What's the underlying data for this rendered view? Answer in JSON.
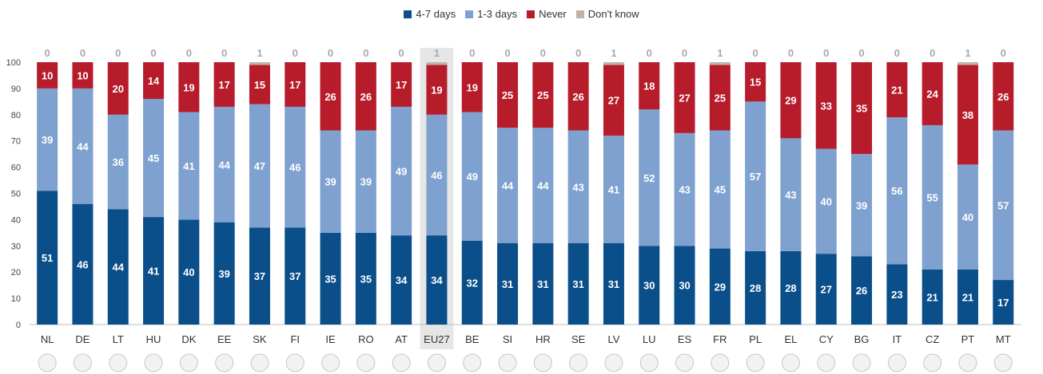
{
  "chart_data": {
    "type": "bar",
    "stacked": true,
    "orientation": "vertical",
    "ylim": [
      0,
      100
    ],
    "yticks": [
      0,
      10,
      20,
      30,
      40,
      50,
      60,
      70,
      80,
      90,
      100
    ],
    "legend_position": "top-center",
    "categories": [
      "NL",
      "DE",
      "LT",
      "HU",
      "DK",
      "EE",
      "SK",
      "FI",
      "IE",
      "RO",
      "AT",
      "EU27",
      "BE",
      "SI",
      "HR",
      "SE",
      "LV",
      "LU",
      "ES",
      "FR",
      "PL",
      "EL",
      "CY",
      "BG",
      "IT",
      "CZ",
      "PT",
      "MT"
    ],
    "highlight_category": "EU27",
    "series": [
      {
        "name": "4-7 days",
        "color": "#0b4f8a",
        "values": [
          51,
          46,
          44,
          41,
          40,
          39,
          37,
          37,
          35,
          35,
          34,
          34,
          32,
          31,
          31,
          31,
          31,
          30,
          30,
          29,
          28,
          28,
          27,
          26,
          23,
          21,
          21,
          17
        ]
      },
      {
        "name": "1-3 days",
        "color": "#7ea1cf",
        "values": [
          39,
          44,
          36,
          45,
          41,
          44,
          47,
          46,
          39,
          39,
          49,
          46,
          49,
          44,
          44,
          43,
          41,
          52,
          43,
          45,
          57,
          43,
          40,
          39,
          56,
          55,
          40,
          57
        ]
      },
      {
        "name": "Never",
        "color": "#b71c2b",
        "values": [
          10,
          10,
          20,
          14,
          19,
          17,
          15,
          17,
          26,
          26,
          17,
          19,
          19,
          25,
          25,
          26,
          27,
          18,
          27,
          25,
          15,
          29,
          33,
          35,
          21,
          24,
          38,
          26
        ]
      },
      {
        "name": "Don't know",
        "color": "#bfb2a8",
        "values": [
          0,
          0,
          0,
          0,
          0,
          0,
          1,
          0,
          0,
          0,
          0,
          1,
          0,
          0,
          0,
          0,
          1,
          0,
          0,
          1,
          0,
          0,
          0,
          0,
          0,
          0,
          1,
          0
        ]
      }
    ]
  },
  "flags": [
    "NL",
    "DE",
    "LT",
    "HU",
    "DK",
    "EE",
    "SK",
    "FI",
    "IE",
    "RO",
    "AT",
    "EU27",
    "BE",
    "SI",
    "HR",
    "SE",
    "LV",
    "LU",
    "ES",
    "FR",
    "PL",
    "EL",
    "CY",
    "BG",
    "IT",
    "CZ",
    "PT",
    "MT"
  ]
}
